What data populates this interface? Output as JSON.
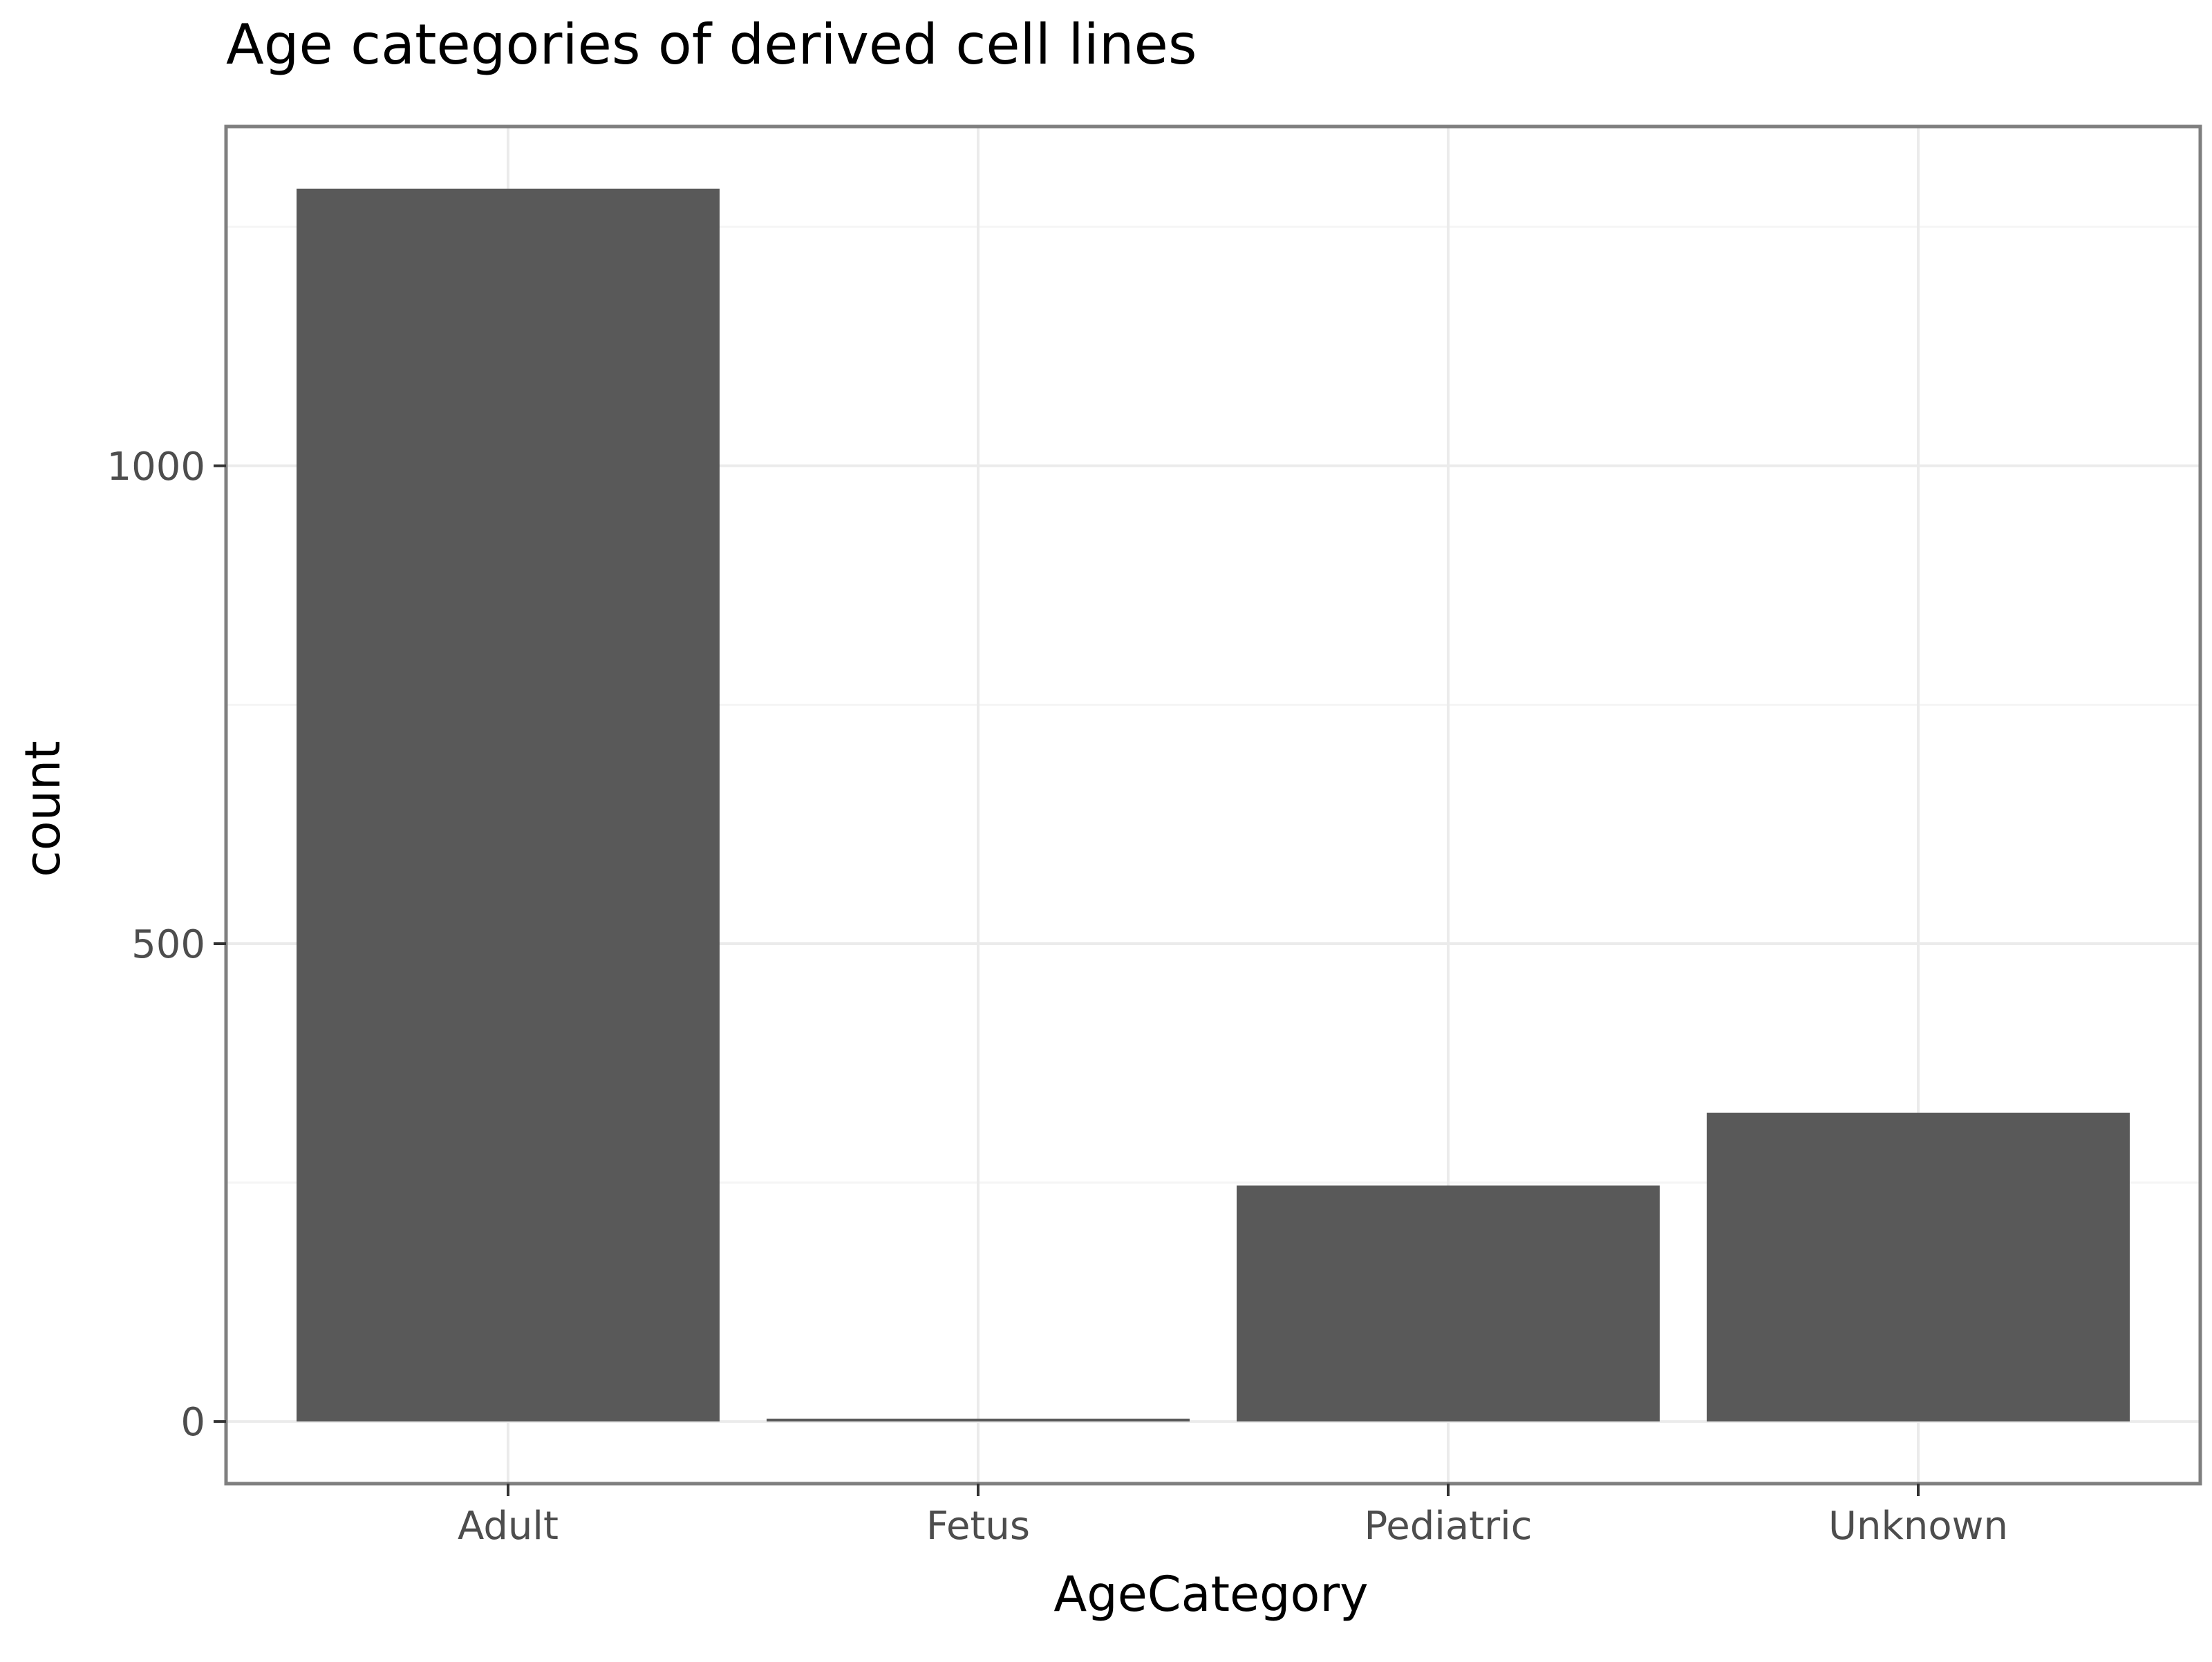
{
  "chart_data": {
    "type": "bar",
    "title": "Age categories of derived cell lines",
    "xlabel": "AgeCategory",
    "ylabel": "count",
    "categories": [
      "Adult",
      "Fetus",
      "Pediatric",
      "Unknown"
    ],
    "values": [
      1290,
      3,
      247,
      323
    ],
    "ylim": [
      -65,
      1355
    ],
    "yticks": [
      0,
      500,
      1000
    ],
    "grid": true,
    "legend": "none",
    "colors": {
      "bar": "#595959",
      "panel_border": "#7f7f7f",
      "grid_major": "#ebebeb",
      "grid_minor": "#f5f5f5",
      "tick_text": "#4d4d4d",
      "title_text": "#000000"
    }
  }
}
